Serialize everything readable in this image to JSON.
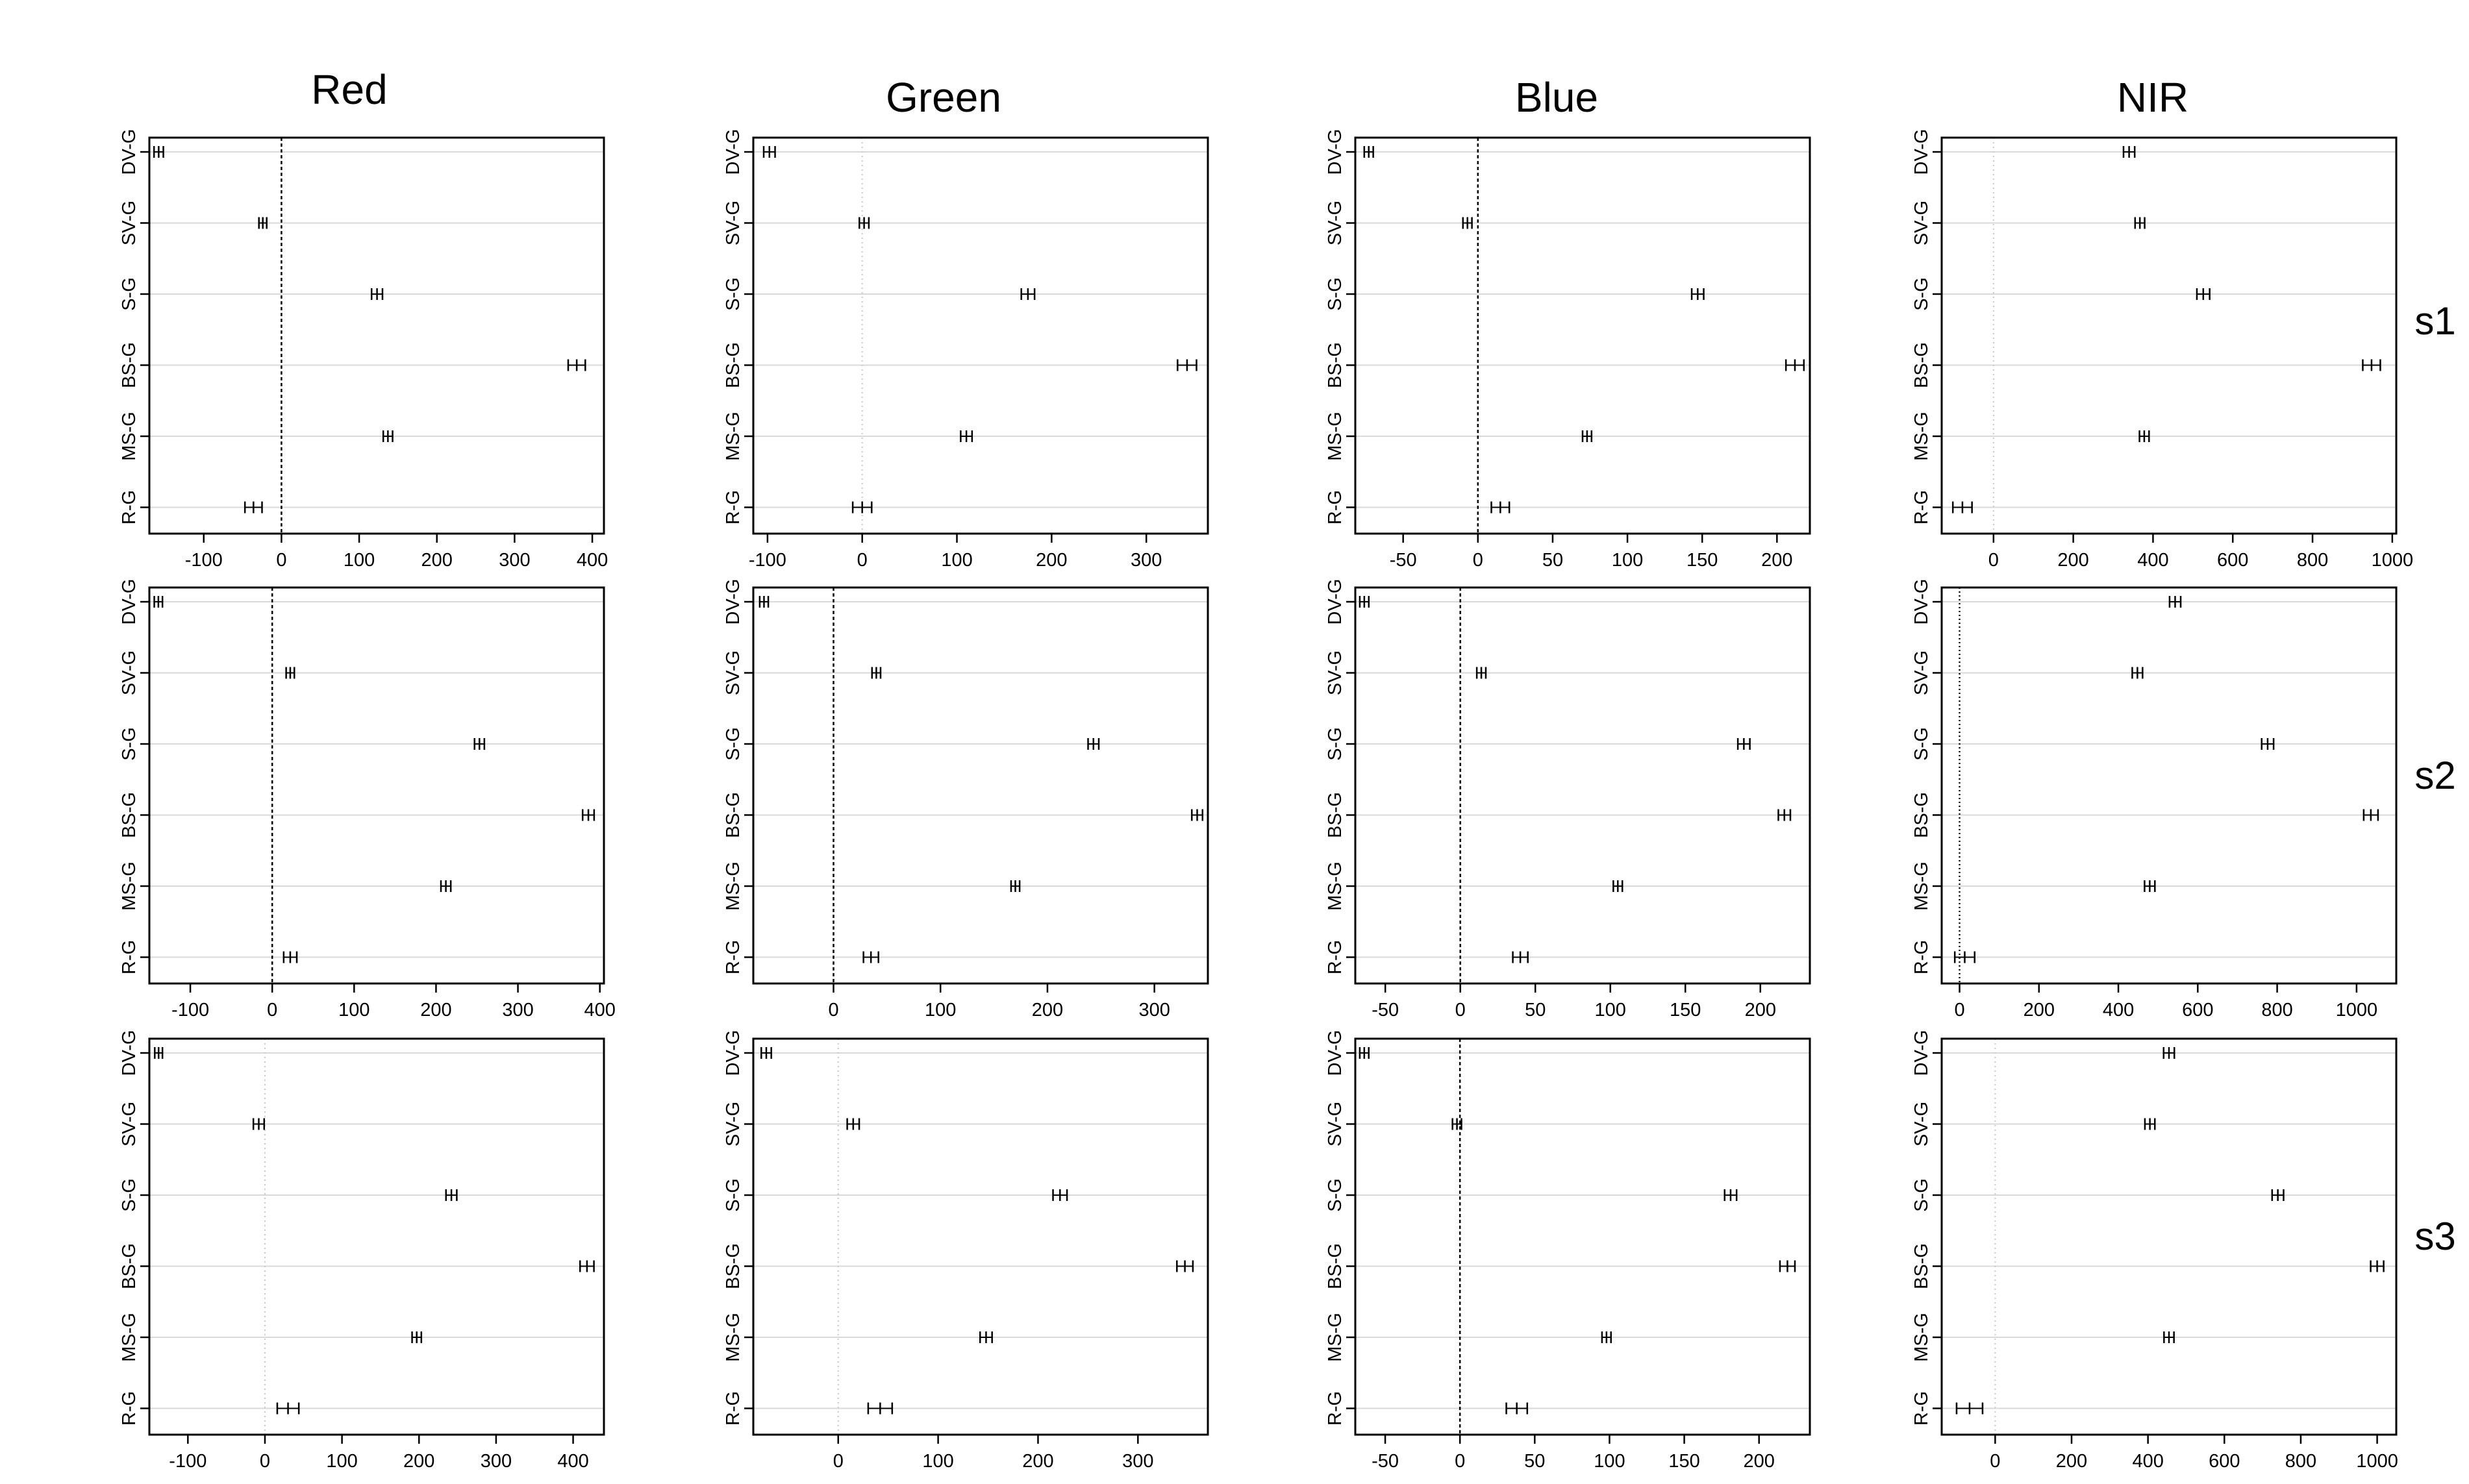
{
  "column_titles": [
    "Red",
    "Green",
    "Blue",
    "NIR"
  ],
  "row_labels": [
    "s1",
    "s2",
    "s3"
  ],
  "categories": [
    "DV-G",
    "SV-G",
    "S-G",
    "BS-G",
    "MS-G",
    "R-G"
  ],
  "colors": {
    "axis": "#000000",
    "gridline": "#d9d9d9",
    "zero_line": "#000000",
    "zero_line_faint": "#c8c8c8",
    "marker": "#000000"
  },
  "chart_data": [
    {
      "type": "interval",
      "row_label": "s1",
      "title": "Red",
      "categories": [
        "DV-G",
        "SV-G",
        "S-G",
        "BS-G",
        "MS-G",
        "R-G"
      ],
      "values": [
        -158,
        -24,
        123,
        380,
        137,
        -36
      ],
      "half_width": [
        6,
        5,
        7,
        11,
        6,
        11
      ],
      "xlim": [
        -170,
        415
      ],
      "xticks": [
        -100,
        0,
        100,
        200,
        300,
        400
      ],
      "zero_line": "dashed"
    },
    {
      "type": "interval",
      "row_label": "s1",
      "title": "Green",
      "categories": [
        "DV-G",
        "SV-G",
        "S-G",
        "BS-G",
        "MS-G",
        "R-G"
      ],
      "values": [
        -98,
        2,
        175,
        343,
        110,
        0
      ],
      "half_width": [
        6,
        5,
        7,
        10,
        6,
        10
      ],
      "xlim": [
        -115,
        365
      ],
      "xticks": [
        -100,
        0,
        100,
        200,
        300
      ],
      "zero_line": "dotted-faint"
    },
    {
      "type": "interval",
      "row_label": "s1",
      "title": "Blue",
      "categories": [
        "DV-G",
        "SV-G",
        "S-G",
        "BS-G",
        "MS-G",
        "R-G"
      ],
      "values": [
        -73,
        -7,
        147,
        212,
        73,
        15
      ],
      "half_width": [
        3,
        3,
        4,
        6,
        3,
        6
      ],
      "xlim": [
        -82,
        222
      ],
      "xticks": [
        -50,
        0,
        50,
        100,
        150,
        200
      ],
      "zero_line": "dashed"
    },
    {
      "type": "interval",
      "row_label": "s1",
      "title": "NIR",
      "categories": [
        "DV-G",
        "SV-G",
        "S-G",
        "BS-G",
        "MS-G",
        "R-G"
      ],
      "values": [
        340,
        367,
        526,
        948,
        378,
        -78
      ],
      "half_width": [
        14,
        12,
        16,
        22,
        12,
        24
      ],
      "xlim": [
        -130,
        1010
      ],
      "xticks": [
        0,
        200,
        400,
        600,
        800,
        1000
      ],
      "zero_line": "dotted-faint"
    },
    {
      "type": "interval",
      "row_label": "s2",
      "title": "Red",
      "categories": [
        "DV-G",
        "SV-G",
        "S-G",
        "BS-G",
        "MS-G",
        "R-G"
      ],
      "values": [
        -139,
        22,
        253,
        386,
        212,
        22
      ],
      "half_width": [
        5,
        5,
        6,
        7,
        6,
        8
      ],
      "xlim": [
        -150,
        405
      ],
      "xticks": [
        -100,
        0,
        100,
        200,
        300,
        400
      ],
      "zero_line": "dashed"
    },
    {
      "type": "interval",
      "row_label": "s2",
      "title": "Green",
      "categories": [
        "DV-G",
        "SV-G",
        "S-G",
        "BS-G",
        "MS-G",
        "R-G"
      ],
      "values": [
        -65,
        40,
        243,
        340,
        170,
        35
      ],
      "half_width": [
        4,
        4,
        5,
        5,
        4,
        7
      ],
      "xlim": [
        -75,
        350
      ],
      "xticks": [
        0,
        100,
        200,
        300
      ],
      "zero_line": "dashed"
    },
    {
      "type": "interval",
      "row_label": "s2",
      "title": "Blue",
      "categories": [
        "DV-G",
        "SV-G",
        "S-G",
        "BS-G",
        "MS-G",
        "R-G"
      ],
      "values": [
        -64,
        14,
        189,
        216,
        105,
        40
      ],
      "half_width": [
        3,
        3,
        4,
        4,
        3,
        5
      ],
      "xlim": [
        -70,
        233
      ],
      "xticks": [
        -50,
        0,
        50,
        100,
        150,
        200
      ],
      "zero_line": "dashed"
    },
    {
      "type": "interval",
      "row_label": "s2",
      "title": "NIR",
      "categories": [
        "DV-G",
        "SV-G",
        "S-G",
        "BS-G",
        "MS-G",
        "R-G"
      ],
      "values": [
        543,
        448,
        776,
        1036,
        479,
        13
      ],
      "half_width": [
        14,
        13,
        15,
        18,
        13,
        25
      ],
      "xlim": [
        -45,
        1100
      ],
      "xticks": [
        0,
        200,
        400,
        600,
        800,
        1000
      ],
      "zero_line": "dotted"
    },
    {
      "type": "interval",
      "row_label": "s3",
      "title": "Red",
      "categories": [
        "DV-G",
        "SV-G",
        "S-G",
        "BS-G",
        "MS-G",
        "R-G"
      ],
      "values": [
        -138,
        -8,
        242,
        418,
        197,
        30
      ],
      "half_width": [
        5,
        7,
        7,
        9,
        6,
        14
      ],
      "xlim": [
        -150,
        440
      ],
      "xticks": [
        -100,
        0,
        100,
        200,
        300,
        400
      ],
      "zero_line": "dotted-faint"
    },
    {
      "type": "interval",
      "row_label": "s3",
      "title": "Green",
      "categories": [
        "DV-G",
        "SV-G",
        "S-G",
        "BS-G",
        "MS-G",
        "R-G"
      ],
      "values": [
        -72,
        15,
        222,
        347,
        148,
        42
      ],
      "half_width": [
        5,
        6,
        7,
        8,
        6,
        12
      ],
      "xlim": [
        -85,
        370
      ],
      "xticks": [
        0,
        100,
        200,
        300
      ],
      "zero_line": "dotted-faint"
    },
    {
      "type": "interval",
      "row_label": "s3",
      "title": "Blue",
      "categories": [
        "DV-G",
        "SV-G",
        "S-G",
        "BS-G",
        "MS-G",
        "R-G"
      ],
      "values": [
        -64,
        -2,
        181,
        219,
        98,
        38
      ],
      "half_width": [
        3,
        3,
        4,
        5,
        3,
        7
      ],
      "xlim": [
        -70,
        234
      ],
      "xticks": [
        -50,
        0,
        50,
        100,
        150,
        200
      ],
      "zero_line": "dashed"
    },
    {
      "type": "interval",
      "row_label": "s3",
      "title": "NIR",
      "categories": [
        "DV-G",
        "SV-G",
        "S-G",
        "BS-G",
        "MS-G",
        "R-G"
      ],
      "values": [
        455,
        405,
        740,
        1000,
        455,
        -67
      ],
      "half_width": [
        14,
        13,
        15,
        17,
        13,
        34
      ],
      "xlim": [
        -140,
        1050
      ],
      "xticks": [
        0,
        200,
        400,
        600,
        800,
        1000
      ],
      "zero_line": "dotted-faint"
    }
  ]
}
